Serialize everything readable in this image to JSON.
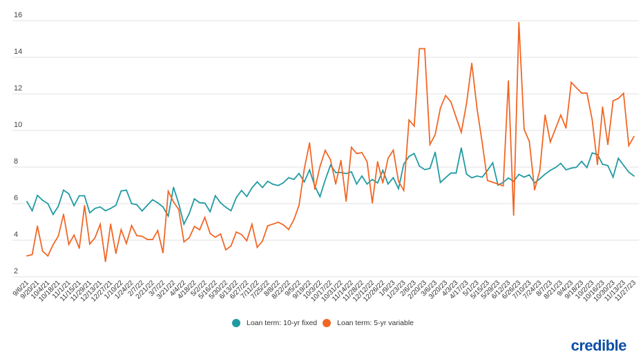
{
  "chart_data": {
    "type": "line",
    "title": "",
    "xlabel": "",
    "ylabel": "",
    "ylim": [
      2,
      16
    ],
    "yticks": [
      "2",
      "4",
      "6",
      "8",
      "10",
      "12",
      "14",
      "16"
    ],
    "grid": true,
    "legend_position": "bottom-center",
    "x_start": "9/6/21",
    "x_interval": "weekly",
    "xtick_labels": [
      "9/6/21",
      "9/20/21",
      "10/4/21",
      "10/18/21",
      "11/1/21",
      "11/15/21",
      "11/29/21",
      "12/13/21",
      "12/27/21",
      "1/10/22",
      "1/24/22",
      "2/7/22",
      "2/21/22",
      "3/7/22",
      "3/21/22",
      "4/4/22",
      "4/18/22",
      "5/2/22",
      "5/16/22",
      "5/30/22",
      "6/13/22",
      "6/27/22",
      "7/11/22",
      "7/25/22",
      "8/8/22",
      "8/22/22",
      "9/5/22",
      "9/19/22",
      "10/3/22",
      "10/17/22",
      "10/31/22",
      "11/14/22",
      "11/28/22",
      "12/12/22",
      "12/26/22",
      "1/9/23",
      "1/23/23",
      "2/6/23",
      "2/20/23",
      "3/6/23",
      "3/20/23",
      "4/3/23",
      "4/17/23",
      "5/1/23",
      "5/15/23",
      "5/29/23",
      "6/12/23",
      "6/26/23",
      "7/10/23",
      "7/24/23",
      "8/7/23",
      "8/21/23",
      "9/4/23",
      "9/18/23",
      "10/2/23",
      "10/16/23",
      "10/30/23",
      "11/13/23",
      "11/27/23"
    ],
    "series": [
      {
        "name": "Loan term: 10-yr fixed",
        "color": "#1f9aa3",
        "values": [
          6.11,
          5.61,
          6.45,
          6.18,
          6.0,
          5.41,
          5.86,
          6.74,
          6.54,
          5.89,
          6.43,
          6.43,
          5.5,
          5.74,
          5.82,
          5.61,
          5.74,
          5.91,
          6.69,
          6.74,
          6.0,
          5.94,
          5.6,
          5.91,
          6.21,
          6.04,
          5.82,
          5.32,
          6.89,
          6.0,
          4.88,
          5.45,
          6.26,
          6.05,
          6.03,
          5.56,
          6.43,
          6.04,
          5.8,
          5.61,
          6.33,
          6.72,
          6.39,
          6.86,
          7.19,
          6.88,
          7.22,
          7.06,
          6.99,
          7.14,
          7.42,
          7.32,
          7.65,
          7.19,
          7.84,
          6.96,
          6.38,
          7.3,
          8.1,
          7.7,
          7.7,
          7.64,
          7.74,
          7.07,
          7.51,
          7.07,
          7.32,
          7.13,
          7.82,
          7.07,
          7.42,
          6.82,
          8.16,
          8.58,
          8.74,
          8.05,
          7.86,
          7.92,
          8.81,
          7.16,
          7.42,
          7.67,
          7.67,
          9.04,
          7.61,
          7.41,
          7.51,
          7.45,
          7.82,
          8.23,
          7.01,
          7.16,
          7.4,
          7.22,
          7.6,
          7.45,
          7.57,
          7.13,
          7.36,
          7.61,
          7.82,
          7.97,
          8.2,
          7.85,
          7.94,
          7.99,
          8.31,
          7.97,
          8.77,
          8.69,
          8.15,
          8.08,
          7.45,
          8.48,
          8.1,
          7.72,
          7.51
        ]
      },
      {
        "name": "Loan term: 5-yr variable",
        "color": "#f26624",
        "values": [
          3.14,
          3.21,
          4.77,
          3.4,
          3.14,
          3.75,
          4.23,
          5.42,
          3.77,
          4.28,
          3.56,
          5.89,
          3.79,
          4.13,
          4.87,
          2.83,
          4.88,
          3.28,
          4.58,
          3.82,
          4.8,
          4.25,
          4.21,
          4.04,
          4.04,
          4.53,
          3.31,
          6.68,
          6.1,
          5.67,
          3.91,
          4.13,
          4.75,
          4.57,
          5.25,
          4.37,
          4.16,
          4.34,
          3.47,
          3.69,
          4.45,
          4.31,
          3.97,
          4.87,
          3.61,
          3.95,
          4.79,
          4.88,
          4.98,
          4.84,
          4.58,
          5.12,
          5.91,
          7.9,
          9.32,
          6.79,
          8.03,
          8.91,
          8.4,
          7.07,
          8.36,
          6.13,
          9.08,
          8.74,
          8.79,
          8.29,
          6.04,
          8.29,
          7.13,
          8.48,
          8.92,
          7.22,
          6.72,
          10.57,
          10.24,
          14.47,
          14.47,
          9.23,
          9.77,
          11.22,
          11.91,
          11.57,
          10.72,
          9.9,
          11.47,
          13.67,
          11.2,
          9.3,
          7.26,
          7.17,
          7.07,
          6.97,
          12.71,
          5.37,
          15.9,
          10.06,
          9.4,
          6.75,
          7.82,
          10.84,
          9.37,
          10.09,
          10.84,
          10.13,
          12.63,
          12.33,
          12.04,
          12.04,
          10.59,
          8.14,
          11.28,
          9.23,
          11.62,
          11.75,
          12.03,
          9.17,
          9.67
        ]
      }
    ]
  },
  "legend": {
    "items": [
      "Loan term: 10-yr fixed",
      "Loan term: 5-yr variable"
    ]
  },
  "logo": {
    "text": "credible"
  }
}
